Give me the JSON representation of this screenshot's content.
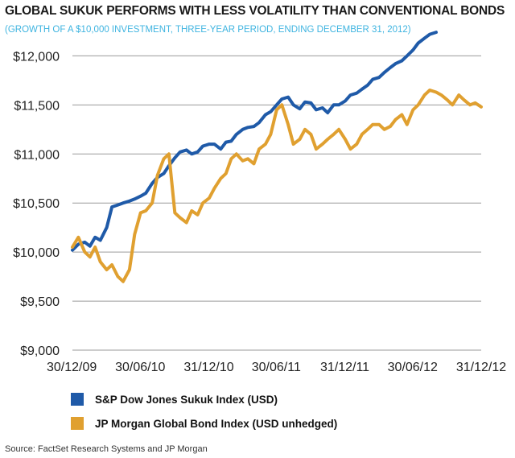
{
  "chart_data": {
    "type": "line",
    "title": "GLOBAL SUKUK PERFORMS WITH LESS VOLATILITY THAN CONVENTIONAL BONDS",
    "subtitle": "(GROWTH OF A $10,000 INVESTMENT, THREE-YEAR PERIOD, ENDING DECEMBER 31, 2012)",
    "xlabel": "",
    "ylabel": "",
    "x_ticks": [
      "30/12/09",
      "30/06/10",
      "31/12/10",
      "30/06/11",
      "31/12/11",
      "30/06/12",
      "31/12/12"
    ],
    "y_ticks": [
      "$9,000",
      "$9,500",
      "$10,000",
      "$10,500",
      "$11,000",
      "$11,500",
      "$12,000"
    ],
    "ylim": [
      9000,
      12200
    ],
    "grid": "horizontal",
    "legend_position": "bottom",
    "series": [
      {
        "name": "S&P Dow Jones Sukuk Index (USD)",
        "color": "#1f5aa8",
        "x": [
          "2009-12-30",
          "2010-01-15",
          "2010-02-01",
          "2010-02-15",
          "2010-03-01",
          "2010-03-15",
          "2010-04-01",
          "2010-04-15",
          "2010-05-01",
          "2010-05-15",
          "2010-06-01",
          "2010-06-15",
          "2010-07-01",
          "2010-07-15",
          "2010-08-01",
          "2010-08-15",
          "2010-09-01",
          "2010-09-15",
          "2010-10-01",
          "2010-10-15",
          "2010-11-01",
          "2010-11-15",
          "2010-12-01",
          "2010-12-15",
          "2011-01-01",
          "2011-01-15",
          "2011-02-01",
          "2011-02-15",
          "2011-03-01",
          "2011-03-15",
          "2011-04-01",
          "2011-04-15",
          "2011-05-01",
          "2011-05-15",
          "2011-06-01",
          "2011-06-15",
          "2011-07-01",
          "2011-07-15",
          "2011-08-01",
          "2011-08-15",
          "2011-09-01",
          "2011-09-15",
          "2011-10-01",
          "2011-10-15",
          "2011-11-01",
          "2011-11-15",
          "2011-12-01",
          "2011-12-15",
          "2012-01-01",
          "2012-01-15",
          "2012-02-01",
          "2012-02-15",
          "2012-03-01",
          "2012-03-15",
          "2012-04-01",
          "2012-04-15",
          "2012-05-01",
          "2012-05-15",
          "2012-06-01",
          "2012-06-15",
          "2012-07-01",
          "2012-07-15",
          "2012-08-01",
          "2012-08-15",
          "2012-09-01"
        ],
        "values": [
          10020,
          10080,
          10100,
          10060,
          10150,
          10120,
          10250,
          10460,
          10480,
          10500,
          10520,
          10540,
          10570,
          10600,
          10700,
          10760,
          10800,
          10880,
          10960,
          11020,
          11040,
          11000,
          11020,
          11080,
          11100,
          11100,
          11050,
          11120,
          11130,
          11200,
          11250,
          11270,
          11280,
          11320,
          11400,
          11430,
          11500,
          11560,
          11580,
          11500,
          11460,
          11530,
          11520,
          11450,
          11470,
          11420,
          11500,
          11500,
          11540,
          11600,
          11620,
          11660,
          11700,
          11760,
          11780,
          11830,
          11880,
          11920,
          11950,
          12000,
          12060,
          12130,
          12180,
          12220,
          12240
        ]
      },
      {
        "name": "JP Morgan Global Bond Index (USD unhedged)",
        "color": "#e0a030",
        "x": [
          "2009-12-30",
          "2010-01-15",
          "2010-02-01",
          "2010-02-15",
          "2010-03-01",
          "2010-03-15",
          "2010-04-01",
          "2010-04-15",
          "2010-05-01",
          "2010-05-15",
          "2010-06-01",
          "2010-06-15",
          "2010-07-01",
          "2010-07-15",
          "2010-08-01",
          "2010-08-15",
          "2010-09-01",
          "2010-09-15",
          "2010-10-01",
          "2010-10-15",
          "2010-11-01",
          "2010-11-15",
          "2010-12-01",
          "2010-12-15",
          "2011-01-01",
          "2011-01-15",
          "2011-02-01",
          "2011-02-15",
          "2011-03-01",
          "2011-03-15",
          "2011-04-01",
          "2011-04-15",
          "2011-05-01",
          "2011-05-15",
          "2011-06-01",
          "2011-06-15",
          "2011-07-01",
          "2011-07-15",
          "2011-08-01",
          "2011-08-15",
          "2011-09-01",
          "2011-09-15",
          "2011-10-01",
          "2011-10-15",
          "2011-11-01",
          "2011-11-15",
          "2011-12-01",
          "2011-12-15",
          "2012-01-01",
          "2012-01-15",
          "2012-02-01",
          "2012-02-15",
          "2012-03-01",
          "2012-03-15",
          "2012-04-01",
          "2012-04-15",
          "2012-05-01",
          "2012-05-15",
          "2012-06-01",
          "2012-06-15",
          "2012-07-01",
          "2012-07-15",
          "2012-08-01",
          "2012-08-15",
          "2012-09-01",
          "2012-09-15",
          "2012-10-01",
          "2012-10-15",
          "2012-11-01",
          "2012-11-15",
          "2012-12-01",
          "2012-12-15",
          "2012-12-31"
        ],
        "values": [
          10050,
          10150,
          10000,
          9950,
          10050,
          9900,
          9820,
          9870,
          9750,
          9700,
          9820,
          10180,
          10400,
          10420,
          10500,
          10780,
          10950,
          11000,
          10400,
          10350,
          10300,
          10420,
          10380,
          10500,
          10550,
          10650,
          10750,
          10800,
          10950,
          11000,
          10930,
          10950,
          10900,
          11050,
          11100,
          11200,
          11450,
          11500,
          11300,
          11100,
          11150,
          11250,
          11200,
          11050,
          11100,
          11150,
          11200,
          11250,
          11150,
          11050,
          11100,
          11200,
          11250,
          11300,
          11300,
          11250,
          11280,
          11350,
          11400,
          11300,
          11450,
          11500,
          11600,
          11650,
          11630,
          11600,
          11550,
          11500,
          11600,
          11550,
          11500,
          11520,
          11480
        ]
      }
    ]
  },
  "legend": [
    {
      "label": "S&P Dow Jones Sukuk Index (USD)",
      "color": "#1f5aa8"
    },
    {
      "label": "JP Morgan Global Bond Index (USD unhedged)",
      "color": "#e0a030"
    }
  ],
  "source": "Source: FactSet Research Systems and JP Morgan"
}
